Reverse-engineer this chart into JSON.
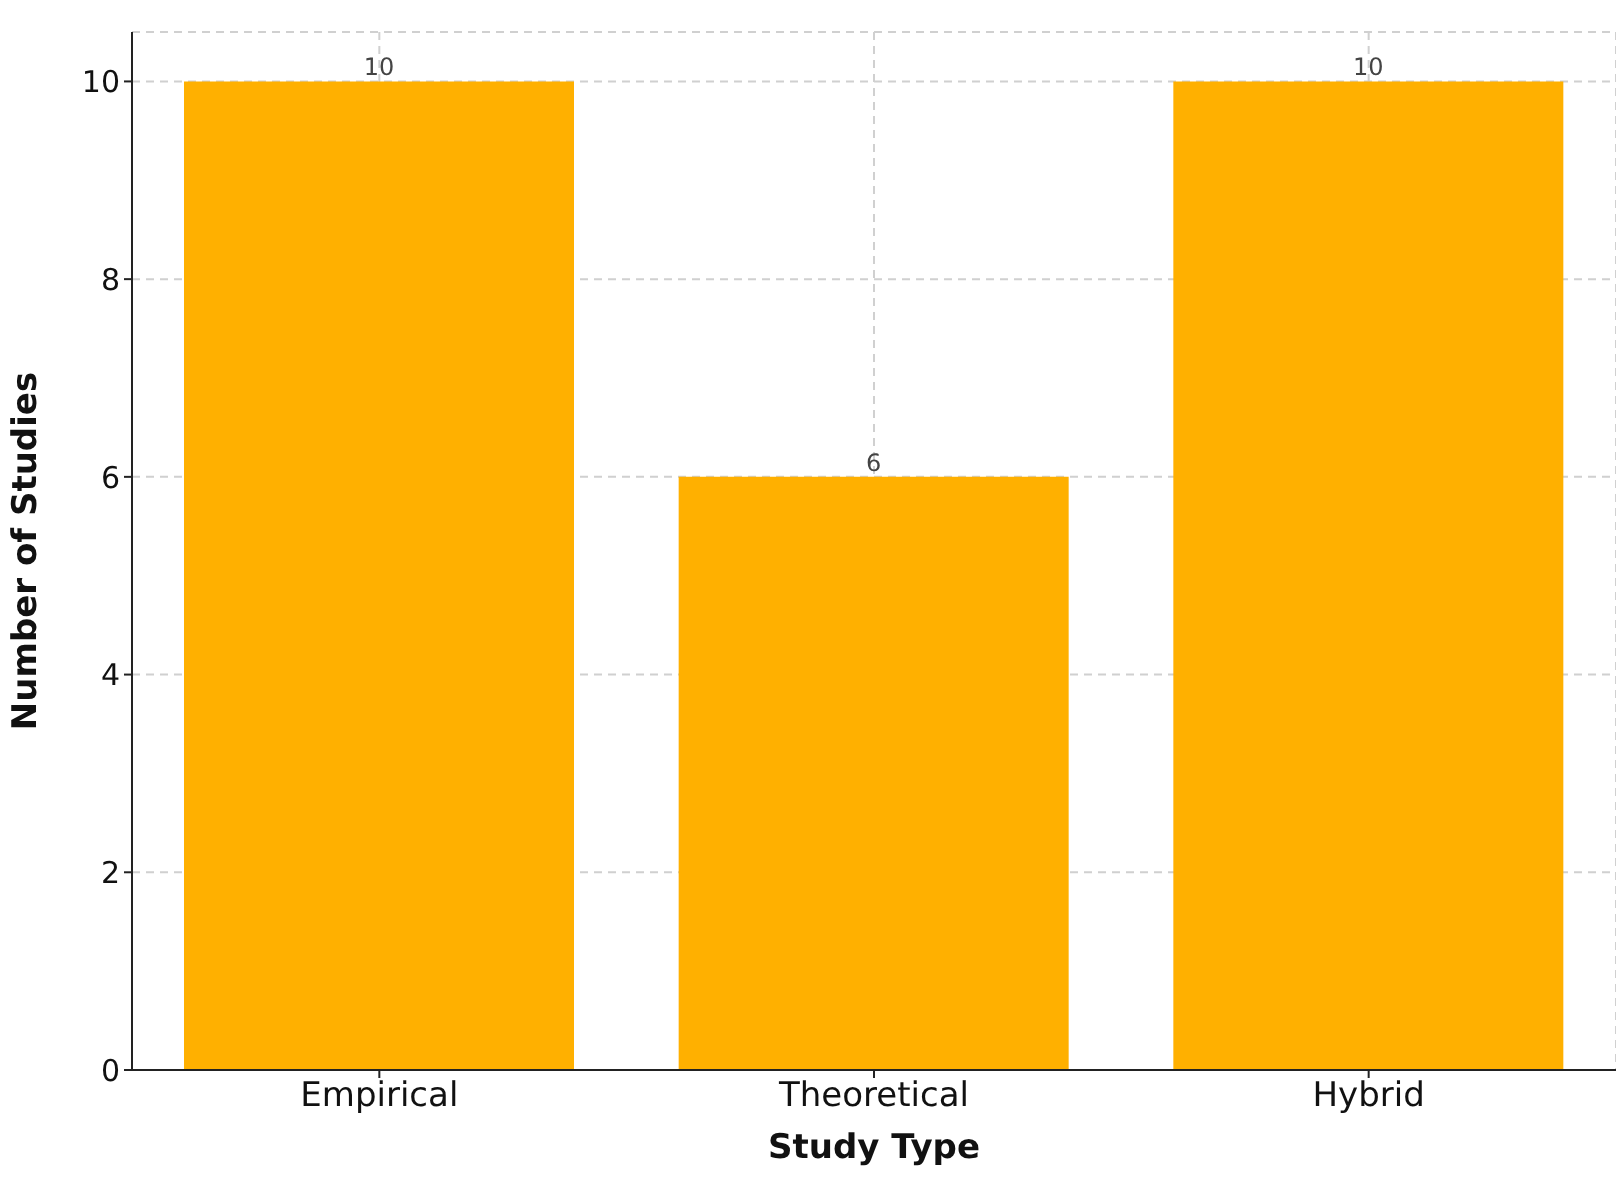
{
  "chart_data": {
    "type": "bar",
    "xlabel": "Study Type",
    "ylabel": "Number of Studies",
    "categories": [
      "Empirical",
      "Theoretical",
      "Hybrid"
    ],
    "values": [
      10,
      6,
      10
    ],
    "color": "#ffb000",
    "ylim": [
      0,
      10.5
    ],
    "yticks": [
      0,
      2,
      4,
      6,
      8,
      10
    ],
    "grid": true,
    "data_labels": true
  }
}
